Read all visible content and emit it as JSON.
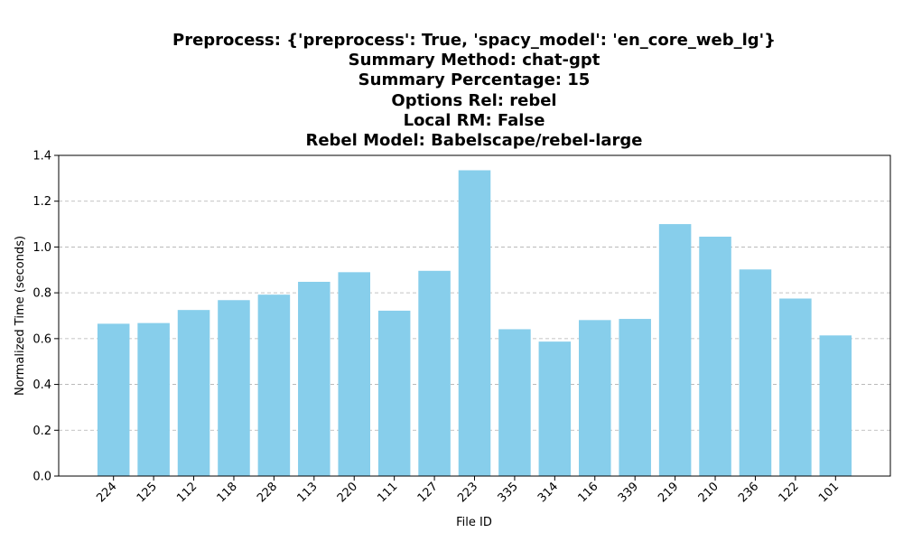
{
  "chart_data": {
    "type": "bar",
    "title_lines": [
      "Preprocess: {'preprocess': True, 'spacy_model': 'en_core_web_lg'}",
      "Summary Method: chat-gpt",
      "Summary Percentage: 15",
      "Options Rel: rebel",
      "Local RM: False",
      "Rebel Model: Babelscape/rebel-large"
    ],
    "xlabel": "File ID",
    "ylabel": "Normalized Time (seconds)",
    "categories": [
      "224",
      "125",
      "112",
      "118",
      "228",
      "113",
      "220",
      "111",
      "127",
      "223",
      "335",
      "314",
      "116",
      "339",
      "219",
      "210",
      "236",
      "122",
      "101"
    ],
    "values": [
      0.665,
      0.668,
      0.725,
      0.768,
      0.792,
      0.848,
      0.89,
      0.722,
      0.896,
      1.335,
      0.641,
      0.587,
      0.681,
      0.686,
      1.1,
      1.045,
      0.902,
      0.775,
      0.614
    ],
    "ylim": [
      0,
      1.4
    ],
    "yticks": [
      "0.0",
      "0.2",
      "0.4",
      "0.6",
      "0.8",
      "1.0",
      "1.2",
      "1.4"
    ],
    "grid": "y-dashed",
    "bar_color": "#87ceeb",
    "grid_color": "#b0b0b0"
  }
}
